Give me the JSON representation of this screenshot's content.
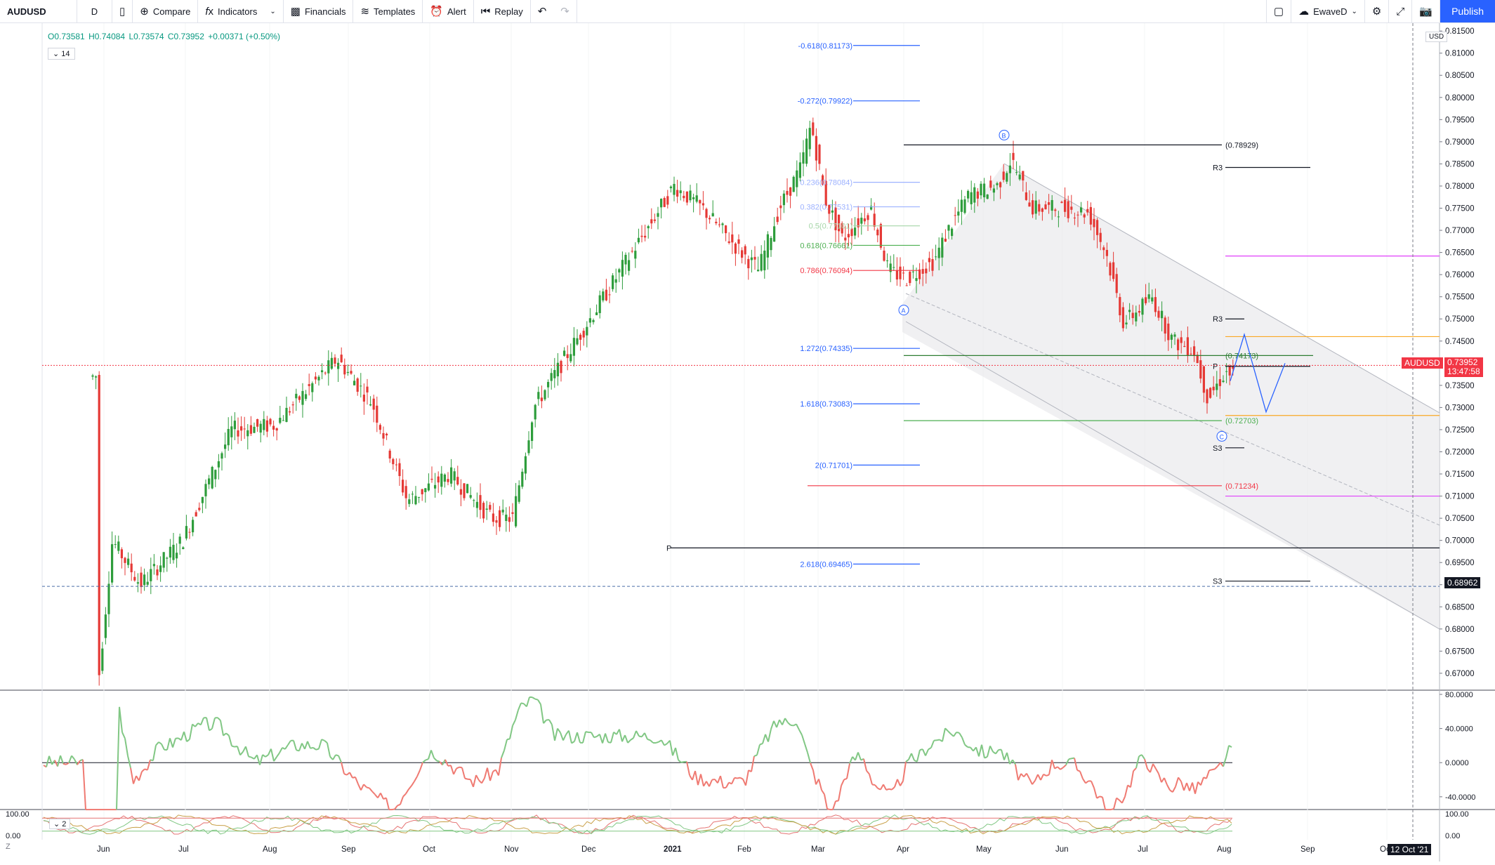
{
  "toolbar": {
    "symbol": "AUDUSD",
    "interval": "D",
    "compare": "Compare",
    "indicators": "Indicators",
    "financials": "Financials",
    "templates": "Templates",
    "alert": "Alert",
    "replay": "Replay",
    "layout_name": "EwaveD",
    "publish": "Publish"
  },
  "legend": {
    "open": "O0.73581",
    "high": "H0.74084",
    "low": "L0.73574",
    "close": "C0.73952",
    "change": "+0.00371 (+0.50%)",
    "indicator_length": "14",
    "stoch_length": "2"
  },
  "axis": {
    "currency": "USD",
    "current_symbol": "AUDUSD",
    "current_price": "0.73952",
    "countdown": "13:47:58",
    "crosshair_price": "0.68962",
    "crosshair_date": "12 Oct '21"
  },
  "chart_data": {
    "type": "candlestick",
    "y_ticks": [
      "0.81500",
      "0.81000",
      "0.80500",
      "0.80000",
      "0.79500",
      "0.79000",
      "0.78500",
      "0.78000",
      "0.77500",
      "0.77000",
      "0.76500",
      "0.76000",
      "0.75500",
      "0.75000",
      "0.74500",
      "0.74000",
      "0.73500",
      "0.73000",
      "0.72500",
      "0.72000",
      "0.71500",
      "0.71000",
      "0.70500",
      "0.70000",
      "0.69500",
      "0.69000",
      "0.68500",
      "0.68000",
      "0.67500",
      "0.67000"
    ],
    "ylim": [
      0.6665,
      0.8155
    ],
    "x_ticks": [
      "Jun",
      "Jul",
      "Aug",
      "Sep",
      "Oct",
      "Nov",
      "Dec",
      "2021",
      "Feb",
      "Mar",
      "Apr",
      "May",
      "Jun",
      "Jul",
      "Aug",
      "Sep",
      "Oc"
    ],
    "fib_left": [
      {
        "label": "-0.618(0.81173)",
        "value": 0.81173,
        "color": "#2962ff"
      },
      {
        "label": "-0.272(0.79922)",
        "value": 0.79922,
        "color": "#2962ff"
      },
      {
        "label": "0.236(0.78084)",
        "value": 0.78084,
        "color": "#9db2ff"
      },
      {
        "label": "0.382(0.77531)",
        "value": 0.77531,
        "color": "#9db2ff"
      },
      {
        "label": "0.5(0.77101)",
        "value": 0.77101,
        "color": "#a5d6a7"
      },
      {
        "label": "0.618(0.76661)",
        "value": 0.76661,
        "color": "#4caf50"
      },
      {
        "label": "0.786(0.76094)",
        "value": 0.76094,
        "color": "#f23645"
      },
      {
        "label": "1.272(0.74335)",
        "value": 0.74335,
        "color": "#2962ff"
      },
      {
        "label": "1.618(0.73083)",
        "value": 0.73083,
        "color": "#2962ff"
      },
      {
        "label": "2(0.71701)",
        "value": 0.71701,
        "color": "#2962ff"
      },
      {
        "label": "2.618(0.69465)",
        "value": 0.69465,
        "color": "#2962ff"
      }
    ],
    "fib_right": [
      {
        "label": "(0.78929)",
        "value": 0.78929,
        "color": "#131722"
      },
      {
        "label": "(0.74173)",
        "value": 0.74173,
        "color": "#2e7d32"
      },
      {
        "label": "(0.72703)",
        "value": 0.72703,
        "color": "#4caf50"
      },
      {
        "label": "(0.71234)",
        "value": 0.71234,
        "color": "#f23645"
      }
    ],
    "pivots": [
      {
        "label": "R3",
        "value": 0.7842
      },
      {
        "label": "R3",
        "value": 0.75
      },
      {
        "label": "P",
        "value": 0.7393
      },
      {
        "label": "S3",
        "value": 0.7209
      },
      {
        "label": "S3",
        "value": 0.6908
      },
      {
        "label": "P",
        "value": 0.6983
      }
    ],
    "wave_labels": [
      {
        "label": "A",
        "date_index": 0.605,
        "value": 0.752
      },
      {
        "label": "B",
        "date_index": 0.672,
        "value": 0.7915
      },
      {
        "label": "C",
        "date_index": 0.838,
        "value": 0.7235
      }
    ],
    "osc_ticks": [
      "80.0000",
      "40.0000",
      "0.0000",
      "-40.0000"
    ],
    "stoch_ticks": [
      "100.00",
      "0.00"
    ]
  }
}
